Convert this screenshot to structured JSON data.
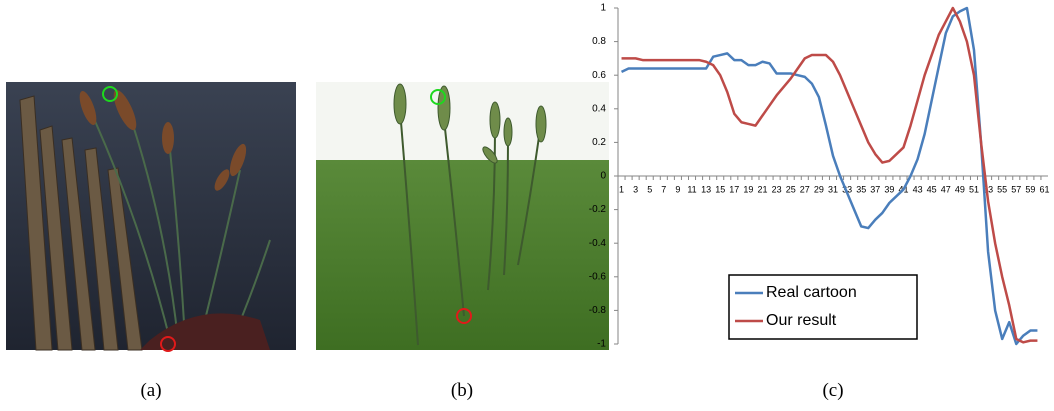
{
  "panel_captions": [
    "(a)",
    "(b)",
    "(c)"
  ],
  "chart_data": {
    "type": "line",
    "categories": [
      1,
      null,
      3,
      null,
      5,
      null,
      7,
      null,
      9,
      null,
      11,
      null,
      13,
      null,
      15,
      null,
      17,
      null,
      19,
      null,
      21,
      null,
      23,
      null,
      25,
      null,
      27,
      null,
      29,
      null,
      31,
      null,
      33,
      null,
      35,
      null,
      37,
      null,
      39,
      null,
      41,
      null,
      43,
      null,
      45,
      null,
      47,
      null,
      49,
      null,
      51,
      null,
      53,
      null,
      55,
      null,
      57,
      null,
      59,
      null,
      61
    ],
    "series": [
      {
        "name": "Real cartoon",
        "color": "#4a7ebb",
        "values": [
          0.62,
          0.64,
          0.64,
          0.64,
          0.64,
          0.64,
          0.64,
          0.64,
          0.64,
          0.64,
          0.64,
          0.64,
          0.64,
          0.71,
          0.72,
          0.73,
          0.69,
          0.69,
          0.66,
          0.66,
          0.68,
          0.67,
          0.61,
          0.61,
          0.61,
          0.6,
          0.59,
          0.55,
          0.47,
          0.3,
          0.12,
          0,
          -0.1,
          -0.2,
          -0.3,
          -0.31,
          -0.26,
          -0.22,
          -0.16,
          -0.12,
          -0.08,
          0,
          0.1,
          0.25,
          0.45,
          0.65,
          0.85,
          0.95,
          0.98,
          1,
          0.75,
          0.2,
          -0.45,
          -0.8,
          -0.97,
          -0.87,
          -1,
          -0.95,
          -0.92,
          -0.92,
          null
        ]
      },
      {
        "name": "Our result",
        "color": "#be4b48",
        "values": [
          0.7,
          0.7,
          0.7,
          0.69,
          0.69,
          0.69,
          0.69,
          0.69,
          0.69,
          0.69,
          0.69,
          0.69,
          0.68,
          0.66,
          0.6,
          0.5,
          0.37,
          0.32,
          0.31,
          0.3,
          0.36,
          0.42,
          0.48,
          0.53,
          0.58,
          0.64,
          0.7,
          0.72,
          0.72,
          0.72,
          0.68,
          0.6,
          0.5,
          0.4,
          0.3,
          0.2,
          0.13,
          0.08,
          0.09,
          0.13,
          0.17,
          0.3,
          0.45,
          0.6,
          0.72,
          0.84,
          0.92,
          1,
          0.92,
          0.8,
          0.6,
          0.2,
          -0.15,
          -0.4,
          -0.6,
          -0.77,
          -0.97,
          -0.99,
          -0.98,
          -0.98,
          null
        ]
      }
    ],
    "ylim": [
      -1,
      1
    ],
    "yticks": [
      -1,
      -0.8,
      -0.6,
      -0.4,
      -0.2,
      0,
      0.2,
      0.4,
      0.6,
      0.8,
      1
    ],
    "grid": false,
    "legend": "lower-center"
  }
}
